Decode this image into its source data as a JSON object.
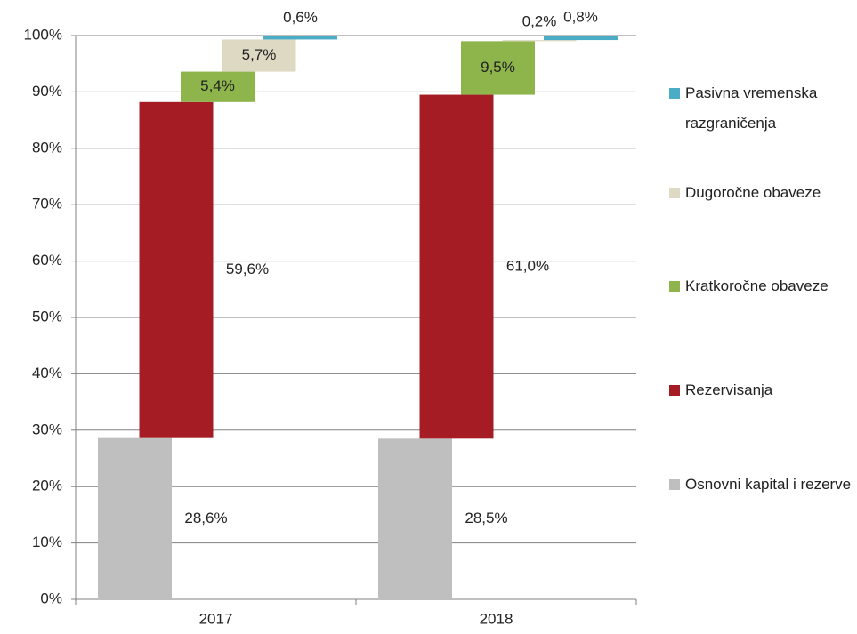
{
  "chart_data": {
    "type": "staggered_stacked_bar",
    "categories": [
      "2017",
      "2018"
    ],
    "series": [
      {
        "name": "Osnovni kapital i rezerve",
        "color": "#bfbfbf",
        "values": [
          28.6,
          28.5
        ],
        "value_labels": [
          "28,6%",
          "28,5%"
        ]
      },
      {
        "name": "Rezervisanja",
        "color": "#a51c24",
        "values": [
          59.6,
          61.0
        ],
        "value_labels": [
          "59,6%",
          "61,0%"
        ]
      },
      {
        "name": "Kratkoročne obaveze",
        "color": "#8db54b",
        "values": [
          5.4,
          9.5
        ],
        "value_labels": [
          "5,4%",
          "9,5%"
        ]
      },
      {
        "name": "Dugoročne obaveze",
        "color": "#ddd9c3",
        "values": [
          5.7,
          0.2
        ],
        "value_labels": [
          "5,7%",
          "0,2%"
        ]
      },
      {
        "name": "Pasivna vremenska razgraničenja",
        "color": "#4bacc6",
        "values": [
          0.6,
          0.8
        ],
        "value_labels": [
          "0,6%",
          "0,8%"
        ]
      }
    ],
    "ylim": [
      0,
      100
    ],
    "yticks": [
      {
        "value": 0,
        "label": "0%"
      },
      {
        "value": 10,
        "label": "10%"
      },
      {
        "value": 20,
        "label": "20%"
      },
      {
        "value": 30,
        "label": "30%"
      },
      {
        "value": 40,
        "label": "40%"
      },
      {
        "value": 50,
        "label": "50%"
      },
      {
        "value": 60,
        "label": "60%"
      },
      {
        "value": 70,
        "label": "70%"
      },
      {
        "value": 80,
        "label": "80%"
      },
      {
        "value": 90,
        "label": "90%"
      },
      {
        "value": 100,
        "label": "100%"
      }
    ],
    "grid": true,
    "legend": "right"
  }
}
